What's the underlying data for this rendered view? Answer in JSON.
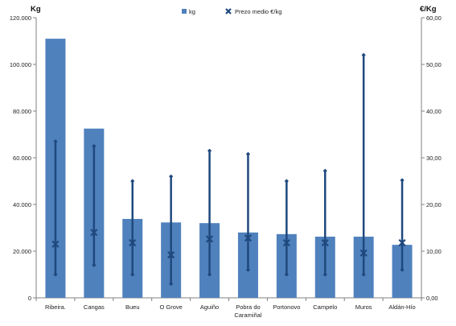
{
  "chart_data": {
    "type": "bar",
    "categories": [
      "Ribeira.",
      "Cangas",
      "Bueu",
      "O Grove",
      "Aguiño",
      "Pobra do Caramiñal",
      "Portonovo",
      "Campelo",
      "Muros",
      "Aldán-Hío"
    ],
    "series": [
      {
        "name": "kg",
        "type": "bar",
        "axis": "left",
        "values": [
          111000,
          72500,
          33800,
          32300,
          32000,
          28000,
          27300,
          26200,
          26200,
          22700
        ]
      },
      {
        "name": "Prezo medio €/kg",
        "type": "marker",
        "axis": "right",
        "values": [
          11.5,
          14.0,
          11.8,
          9.2,
          12.6,
          12.8,
          11.8,
          11.8,
          9.6,
          11.8
        ],
        "max": [
          33.5,
          32.5,
          25.0,
          26.0,
          31.5,
          30.8,
          25.0,
          27.2,
          52.0,
          25.2
        ],
        "min": [
          5.0,
          7.0,
          5.0,
          3.0,
          5.0,
          6.0,
          5.0,
          5.0,
          5.0,
          6.0
        ]
      }
    ],
    "ylabel": "Kg",
    "y2label": "€/Kg",
    "ylim": [
      0,
      120000
    ],
    "y2lim": [
      0,
      60
    ],
    "yticks": [
      "0",
      "20.000",
      "40.000",
      "60.000",
      "80.000",
      "100.000",
      "120.000"
    ],
    "y2ticks": [
      "0,00",
      "10,00",
      "20,00",
      "30,00",
      "40,00",
      "50,00",
      "60,00"
    ],
    "legend_position": "top",
    "grid": false,
    "colors": {
      "bar": "#4f81bd",
      "line": "#1f497d"
    }
  }
}
